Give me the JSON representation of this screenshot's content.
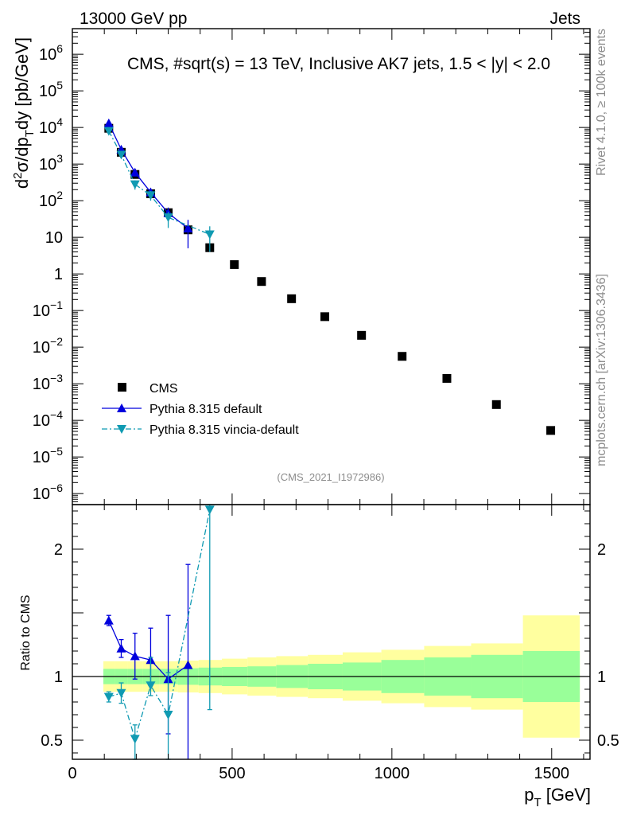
{
  "header": {
    "left": "13000 GeV pp",
    "right": "Jets"
  },
  "side": {
    "rivet": "Rivet 4.1.0, ≥ 100k events",
    "mcplots": "mcplots.cern.ch [arXiv:1306.3436]"
  },
  "colors": {
    "data": "#000000",
    "pythia_default": "#0000dd",
    "pythia_vincia": "#0f9ab2",
    "band_inner": "#99ff99",
    "band_outer": "#ffff9f"
  },
  "chart_data": {
    "type": "scatter",
    "title": "CMS, #sqrt(s) = 13 TeV, Inclusive AK7 jets, 1.5 < |y| < 2.0",
    "analysis_tag": "(CMS_2021_I1972986)",
    "xlabel": {
      "main": "p",
      "sub": "T",
      "rest": " [GeV]"
    },
    "ylabel": {
      "a": "d",
      "sup": "2",
      "b": "σ/dp",
      "sub": "T",
      "c": "dy [pb/GeV]"
    },
    "ratio_ylabel": "Ratio to CMS",
    "xlim": [
      0,
      1620
    ],
    "ylim": [
      5e-07,
      5000000.0
    ],
    "ratio_ylim": [
      0.35,
      2.35
    ],
    "xticks": [
      0,
      500,
      1000,
      1500
    ],
    "yticks": [
      {
        "v": 1000000.0,
        "base": "10",
        "exp": "6"
      },
      {
        "v": 100000.0,
        "base": "10",
        "exp": "5"
      },
      {
        "v": 10000.0,
        "base": "10",
        "exp": "4"
      },
      {
        "v": 1000.0,
        "base": "10",
        "exp": "3"
      },
      {
        "v": 100.0,
        "base": "10",
        "exp": "2"
      },
      {
        "v": 10,
        "base": "10",
        "exp": ""
      },
      {
        "v": 1,
        "base": "1",
        "exp": ""
      },
      {
        "v": 0.1,
        "base": "10",
        "exp": "−1"
      },
      {
        "v": 0.01,
        "base": "10",
        "exp": "−2"
      },
      {
        "v": 0.001,
        "base": "10",
        "exp": "−3"
      },
      {
        "v": 0.0001,
        "base": "10",
        "exp": "−4"
      },
      {
        "v": 1e-05,
        "base": "10",
        "exp": "−5"
      },
      {
        "v": 1e-06,
        "base": "10",
        "exp": "−6"
      }
    ],
    "ratio_yticks": [
      0.5,
      1,
      2
    ],
    "legend": [
      "CMS",
      "Pythia 8.315 default",
      "Pythia 8.315 vincia-default"
    ],
    "cms": {
      "x": [
        114,
        153,
        196,
        245,
        300,
        362,
        430,
        507,
        592,
        686,
        790,
        905,
        1032,
        1172,
        1327,
        1497
      ],
      "xlo": [
        97,
        133,
        174,
        220,
        272,
        330,
        395,
        468,
        548,
        638,
        737,
        846,
        967,
        1101,
        1248,
        1410
      ],
      "xhi": [
        133,
        174,
        220,
        272,
        330,
        395,
        468,
        548,
        638,
        737,
        846,
        967,
        1101,
        1248,
        1410,
        1588
      ],
      "y": [
        9500,
        2100,
        520,
        155,
        47,
        16,
        5.2,
        1.8,
        0.62,
        0.21,
        0.068,
        0.021,
        0.0056,
        0.0014,
        0.00027,
        5.3e-05
      ]
    },
    "band_inner_frac": [
      0.06,
      0.06,
      0.06,
      0.06,
      0.06,
      0.065,
      0.07,
      0.075,
      0.08,
      0.09,
      0.1,
      0.11,
      0.13,
      0.15,
      0.17,
      0.2
    ],
    "band_outer_frac": [
      0.12,
      0.12,
      0.12,
      0.12,
      0.12,
      0.125,
      0.13,
      0.14,
      0.15,
      0.16,
      0.17,
      0.19,
      0.21,
      0.24,
      0.26,
      0.48
    ],
    "series": [
      {
        "name": "Pythia 8.315 default",
        "x": [
          114,
          153,
          196,
          245,
          300,
          362
        ],
        "y": [
          13000,
          2500,
          590,
          170,
          46,
          17.5
        ],
        "ylo": [
          11500,
          2200,
          480,
          130,
          30,
          5
        ],
        "yhi": [
          14500,
          2800,
          700,
          210,
          65,
          30
        ],
        "ratio": [
          1.44,
          1.22,
          1.16,
          1.13,
          0.98,
          1.09
        ],
        "ratio_lo": [
          1.4,
          1.15,
          0.98,
          0.93,
          0.55,
          0.3
        ],
        "ratio_hi": [
          1.48,
          1.29,
          1.34,
          1.38,
          1.48,
          1.88
        ]
      },
      {
        "name": "Pythia 8.315 vincia-default",
        "x": [
          114,
          153,
          196,
          245,
          300,
          430
        ],
        "y": [
          8000,
          1800,
          280,
          140,
          35,
          12
        ],
        "ylo": [
          7000,
          1500,
          200,
          100,
          18,
          4
        ],
        "yhi": [
          9000,
          2100,
          360,
          185,
          50,
          20
        ],
        "ratio": [
          0.84,
          0.87,
          0.51,
          0.93,
          0.7,
          2.31
        ],
        "ratio_lo": [
          0.8,
          0.79,
          0.35,
          0.85,
          0.35,
          0.74
        ],
        "ratio_hi": [
          0.88,
          0.95,
          0.62,
          1.15,
          1.03,
          2.35
        ]
      }
    ]
  }
}
